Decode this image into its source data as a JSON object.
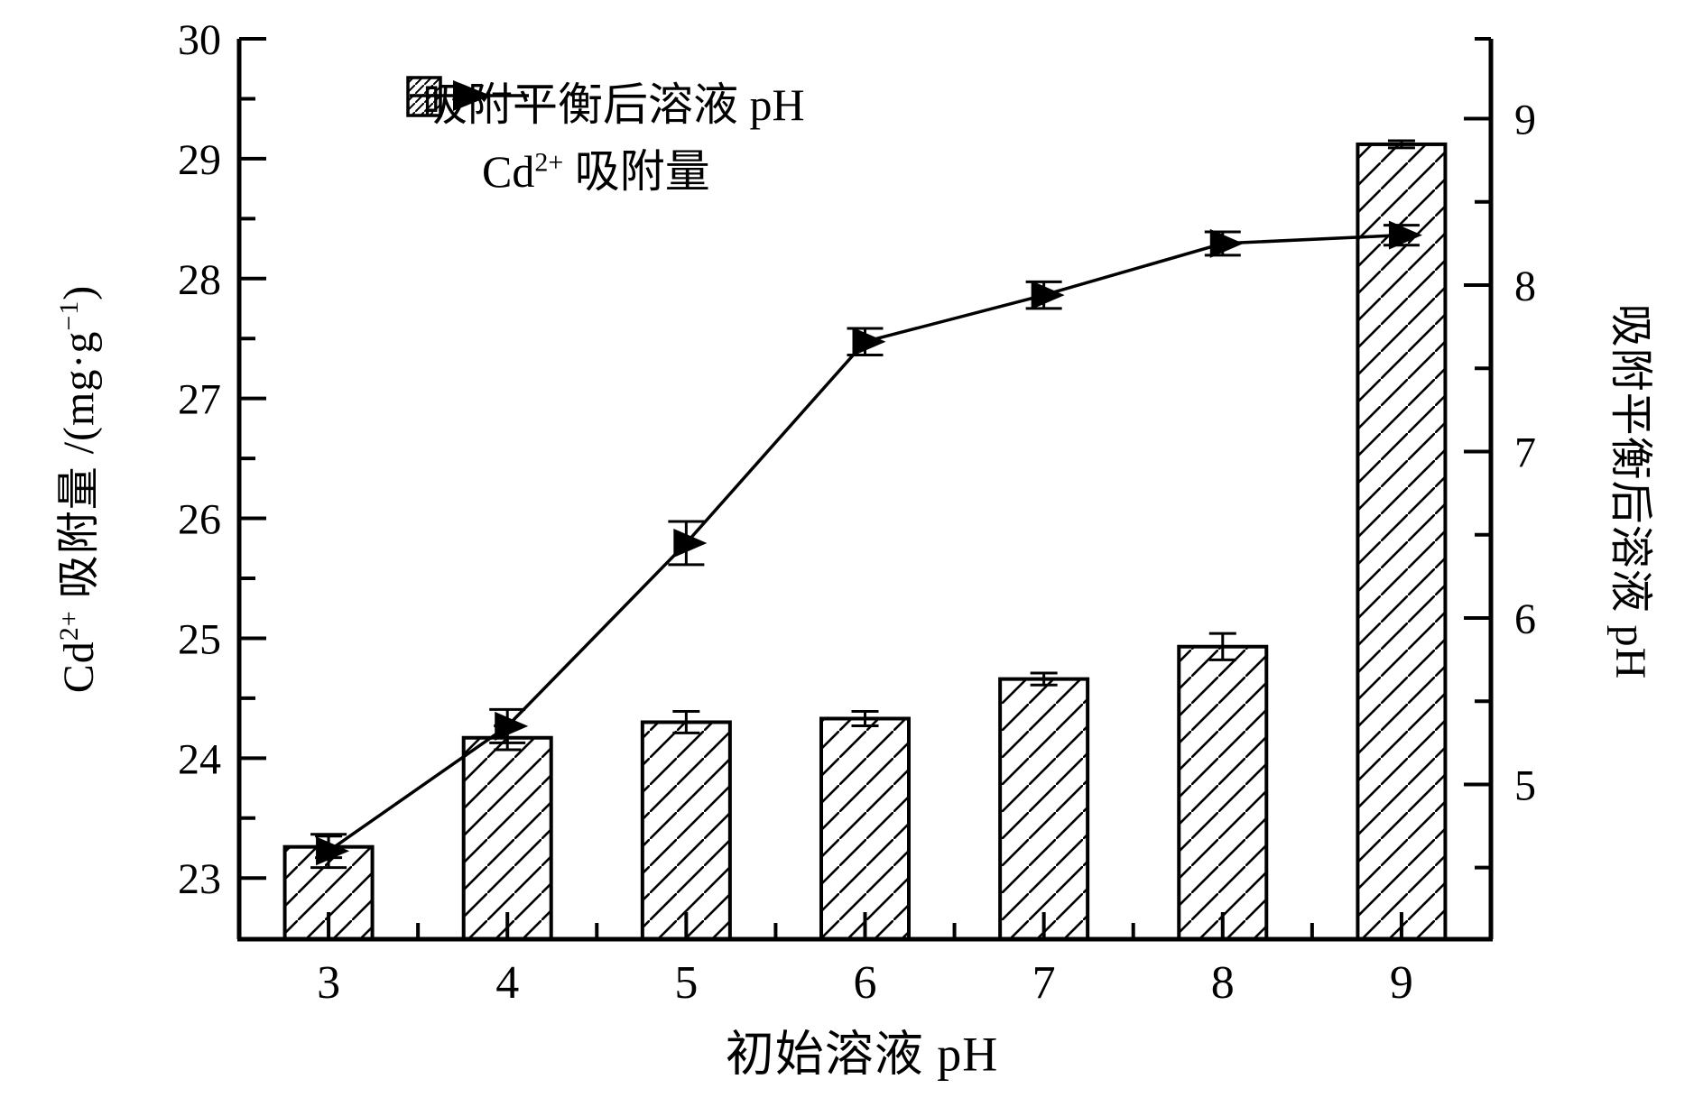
{
  "figure": {
    "background": "#ffffff",
    "ink": "#000000"
  },
  "chart_data": {
    "type": "bar+line (dual y-axis)",
    "categories": [
      3,
      4,
      5,
      6,
      7,
      8,
      9
    ],
    "series": [
      {
        "name": "吸附平衡后溶液 pH",
        "type": "line",
        "axis": "right",
        "marker": "filled-right-triangle",
        "values": [
          4.6,
          5.35,
          6.45,
          7.66,
          7.94,
          8.25,
          8.3
        ],
        "errors": [
          0.1,
          0.1,
          0.13,
          0.08,
          0.08,
          0.07,
          0.06
        ]
      },
      {
        "name": "Cd2+ 吸附量",
        "label_pre": "Cd",
        "label_sup": "2+",
        "label_post": " 吸附量",
        "type": "bar",
        "axis": "left",
        "fill": "diagonal-hatch",
        "values": [
          23.26,
          24.17,
          24.3,
          24.33,
          24.66,
          24.93,
          29.12
        ],
        "errors": [
          0.09,
          0.1,
          0.09,
          0.06,
          0.05,
          0.11,
          0.03
        ]
      }
    ],
    "left_axis": {
      "title_pre": "Cd",
      "title_sup": "2+",
      "title_mid": " 吸附量 /(mg·g",
      "title_sup2": "−1",
      "title_post": ")",
      "ticks": [
        23,
        24,
        25,
        26,
        27,
        28,
        29,
        30
      ],
      "minor_ticks": [
        23.5,
        24.5,
        25.5,
        26.5,
        27.5,
        28.5,
        29.5
      ],
      "range": [
        22.49,
        30.0
      ]
    },
    "right_axis": {
      "title": "吸附平衡后溶液 pH",
      "ticks": [
        5,
        6,
        7,
        8,
        9
      ],
      "minor_ticks": [
        4.5,
        5.5,
        6.5,
        7.5,
        8.5,
        9.48
      ],
      "range": [
        4.07,
        9.48
      ]
    },
    "x_axis": {
      "title": "初始溶液 pH",
      "ticks": [
        3,
        4,
        5,
        6,
        7,
        8,
        9
      ],
      "minor_boundaries": [
        1,
        2,
        3,
        4,
        5,
        6
      ]
    },
    "grid": false,
    "legend_position": "top-left-inside"
  }
}
